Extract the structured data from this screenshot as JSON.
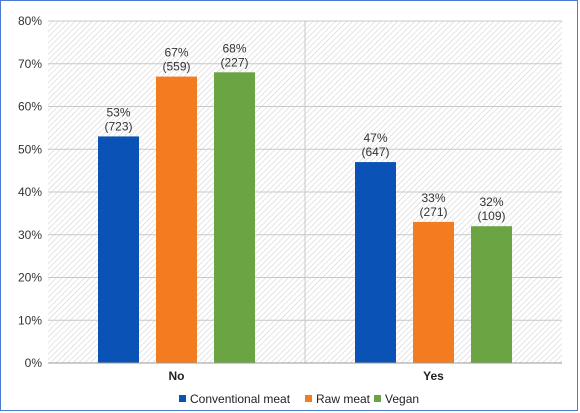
{
  "chart_data": {
    "type": "bar",
    "categories": [
      "No",
      "Yes"
    ],
    "series": [
      {
        "name": "Conventional meat",
        "color": "#0a52b5",
        "values": [
          53,
          47
        ],
        "labels": [
          "53%",
          "47%"
        ],
        "counts": [
          "(723)",
          "(647)"
        ]
      },
      {
        "name": "Raw meat",
        "color": "#f47c20",
        "values": [
          67,
          33
        ],
        "labels": [
          "67%",
          "33%"
        ],
        "counts": [
          "(559)",
          "(271)"
        ]
      },
      {
        "name": "Vegan",
        "color": "#6aa443",
        "values": [
          68,
          32
        ],
        "labels": [
          "68%",
          "32%"
        ],
        "counts": [
          "(227)",
          "(109)"
        ]
      }
    ],
    "yticks": [
      "0%",
      "10%",
      "20%",
      "30%",
      "40%",
      "50%",
      "60%",
      "70%",
      "80%"
    ],
    "ylim": [
      0,
      80
    ],
    "grid": true,
    "legend_position": "bottom",
    "plot_background": "diagonal-hatch"
  }
}
